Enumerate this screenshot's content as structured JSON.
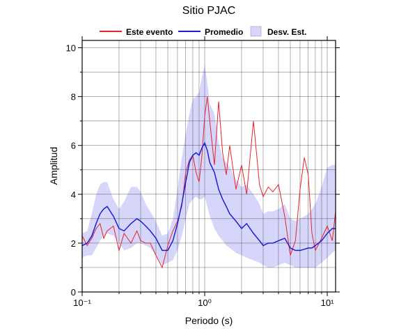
{
  "chart_data": {
    "type": "line",
    "title": "Sitio PJAC",
    "x_label": "Periodo (s)",
    "y_label": "Amplitud",
    "log_x": true,
    "grid": true,
    "xlim": [
      0.1,
      11.7
    ],
    "ylim": [
      0,
      10.3
    ],
    "xticks": [
      {
        "value": 0.1,
        "label": "10⁻¹"
      },
      {
        "value": 1,
        "label": "10⁰"
      },
      {
        "value": 10,
        "label": "10¹"
      }
    ],
    "xminor": [
      0.2,
      0.3,
      0.4,
      0.5,
      0.6,
      0.7,
      0.8,
      0.9,
      2,
      3,
      4,
      5,
      6,
      7,
      8,
      9
    ],
    "yticks": [
      0,
      2,
      4,
      6,
      8,
      10
    ],
    "yminor": [
      1,
      3,
      5,
      7,
      9
    ],
    "x": [
      0.1,
      0.11,
      0.12,
      0.13,
      0.14,
      0.15,
      0.16,
      0.18,
      0.2,
      0.22,
      0.25,
      0.28,
      0.3,
      0.33,
      0.36,
      0.4,
      0.45,
      0.5,
      0.55,
      0.6,
      0.65,
      0.7,
      0.75,
      0.8,
      0.85,
      0.9,
      0.95,
      1.0,
      1.05,
      1.1,
      1.2,
      1.3,
      1.4,
      1.5,
      1.6,
      1.8,
      2.0,
      2.2,
      2.5,
      2.8,
      3.0,
      3.3,
      3.6,
      4.0,
      4.5,
      5.0,
      5.5,
      6.0,
      6.5,
      7.0,
      7.5,
      8.0,
      9.0,
      10,
      11,
      11.7
    ],
    "series": [
      {
        "name": "Este evento",
        "color": "#e8222a",
        "width": 1,
        "values": [
          2.3,
          1.9,
          2.2,
          2.6,
          2.8,
          2.2,
          2.5,
          2.7,
          1.7,
          2.4,
          2.0,
          2.5,
          2.1,
          2.0,
          2.0,
          1.5,
          1.0,
          1.9,
          2.5,
          2.9,
          3.5,
          4.9,
          5.4,
          5.6,
          4.9,
          4.5,
          5.6,
          7.2,
          8.0,
          7.0,
          5.2,
          7.8,
          5.7,
          4.8,
          6.0,
          4.2,
          5.2,
          4.0,
          7.0,
          4.4,
          3.9,
          4.3,
          4.1,
          4.4,
          3.1,
          1.5,
          2.1,
          4.2,
          5.5,
          4.8,
          2.4,
          1.7,
          2.2,
          2.7,
          2.1,
          3.3
        ]
      },
      {
        "name": "Promedio",
        "color": "#1d1dd6",
        "width": 1.5,
        "values": [
          1.9,
          2.0,
          2.3,
          2.8,
          3.2,
          3.4,
          3.5,
          3.1,
          2.6,
          2.5,
          2.8,
          3.0,
          2.9,
          2.7,
          2.5,
          2.2,
          1.7,
          1.7,
          2.1,
          2.8,
          3.6,
          4.5,
          5.3,
          5.6,
          5.7,
          5.6,
          5.9,
          6.1,
          5.8,
          5.3,
          4.9,
          4.2,
          3.8,
          3.5,
          3.2,
          2.9,
          2.6,
          2.8,
          2.4,
          2.1,
          1.9,
          2.0,
          2.0,
          2.1,
          2.2,
          1.8,
          1.7,
          1.7,
          1.75,
          1.8,
          1.8,
          1.9,
          2.1,
          2.4,
          2.6,
          2.6
        ]
      }
    ],
    "band": {
      "name": "Desv. Est.",
      "color": "#d6d6fa",
      "upper": [
        2.4,
        2.5,
        3.2,
        4.0,
        4.4,
        4.5,
        4.5,
        3.8,
        3.4,
        3.7,
        4.3,
        4.3,
        4.1,
        3.6,
        3.3,
        2.9,
        2.3,
        2.4,
        3.0,
        4.2,
        5.5,
        6.5,
        7.3,
        7.9,
        8.0,
        8.2,
        8.8,
        9.3,
        8.6,
        7.7,
        7.3,
        6.1,
        5.5,
        5.3,
        5.1,
        4.6,
        4.3,
        4.4,
        4.0,
        3.6,
        3.2,
        3.3,
        3.3,
        3.4,
        3.6,
        3.0,
        2.9,
        3.0,
        3.1,
        3.2,
        3.4,
        3.6,
        4.3,
        5.1,
        5.2,
        5.2
      ],
      "lower": [
        1.4,
        1.5,
        1.5,
        1.8,
        2.1,
        2.3,
        2.4,
        2.3,
        2.0,
        1.7,
        1.8,
        2.0,
        2.0,
        1.9,
        1.8,
        1.5,
        1.1,
        1.2,
        1.3,
        1.7,
        2.3,
        3.0,
        3.6,
        3.8,
        3.9,
        3.8,
        3.8,
        3.9,
        3.5,
        3.1,
        2.6,
        2.3,
        2.1,
        1.9,
        1.8,
        1.6,
        1.5,
        1.4,
        1.3,
        1.2,
        1.1,
        1.0,
        1.0,
        1.1,
        1.2,
        1.1,
        1.0,
        1.0,
        1.0,
        1.0,
        1.0,
        1.0,
        1.2,
        1.4,
        1.6,
        1.7
      ]
    }
  }
}
